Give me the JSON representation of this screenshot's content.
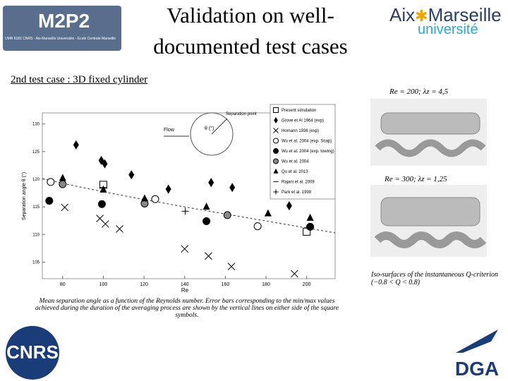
{
  "header": {
    "logo_left": "M2P2",
    "logo_left_sub": "UMR 6181 CNRS - Aix-Marseille Universités - Ecole Centrale Marseille",
    "title_lines": [
      "Validation on well-",
      "documented test cases"
    ],
    "logo_right": [
      "Aix",
      "Marseille",
      "université"
    ]
  },
  "section": "2nd test case : 3D fixed cylinder",
  "chart_data": {
    "type": "scatter",
    "xlabel": "Re",
    "ylabel": "Separation angle θ (°)",
    "inset": {
      "separation": "Separation point",
      "flow": "Flow",
      "angle": "θ (°)"
    },
    "xlim": [
      70,
      214
    ],
    "ylim": [
      102,
      132
    ],
    "xticks": [
      80,
      100,
      120,
      140,
      160,
      180,
      200
    ],
    "yticks": [
      105,
      110,
      115,
      120,
      125,
      130
    ],
    "series": [
      {
        "name": "Present simulation",
        "marker": "square",
        "color": "#000000",
        "x": [
          100,
          200
        ],
        "values": [
          119,
          110.5
        ]
      },
      {
        "name": "Grove et Al 1964 (exp)",
        "marker": "diamond",
        "color": "#000000",
        "x": [
          86.6,
          99,
          100.7,
          113.8,
          132,
          153,
          163.4,
          191.4
        ],
        "values": [
          126.2,
          123.4,
          122.8,
          120.8,
          118.2,
          119.4,
          118.5,
          115.2
        ]
      },
      {
        "name": "Homann 1936 (exp)",
        "marker": "x",
        "color": "#000000",
        "x": [
          81,
          98.3,
          101,
          108,
          140,
          151.7,
          163,
          194
        ],
        "values": [
          114.9,
          112.9,
          111.9,
          111,
          107.4,
          106.1,
          104.2,
          102.9
        ]
      },
      {
        "name": "Wu et al. 2004 (exp. Soap)",
        "marker": "open-circle",
        "color": "#000000",
        "x": [
          74.1,
          125.5,
          175.9
        ],
        "values": [
          119.5,
          116.4,
          111.5
        ]
      },
      {
        "name": "Wu et al. 2004 (exp. towing)",
        "marker": "circle",
        "color": "#000000",
        "x": [
          73.4,
          99.3,
          150.7,
          201.7
        ],
        "values": [
          116.1,
          115.5,
          112.4,
          111.4
        ]
      },
      {
        "name": "Wu et al. 2004",
        "marker": "circle",
        "color": "#888888",
        "x": [
          80,
          120.3,
          161
        ],
        "values": [
          119.1,
          115.6,
          113.5
        ]
      },
      {
        "name": "Qu et al. 2013",
        "marker": "triangle",
        "color": "#000000",
        "x": [
          80,
          100,
          120.3,
          150.7,
          181,
          201.7
        ],
        "values": [
          120.2,
          118.1,
          116.5,
          115,
          113.8,
          113
        ]
      },
      {
        "name": "Rajani et al. 2009",
        "marker": "dash",
        "color": "#000000",
        "x": [
          100
        ],
        "values": [
          118.5
        ]
      },
      {
        "name": "Park et al. 1998",
        "marker": "plus",
        "color": "#000000",
        "x": [
          140.3
        ],
        "values": [
          114.2
        ]
      }
    ]
  },
  "figures": [
    {
      "label": "Re = 200; λz = 4,5"
    },
    {
      "label": "Re = 300; λz = 1,25"
    }
  ],
  "figure_caption": "Iso-surfaces of the instantaneous Q-criterion (−0.8 < Q < 0.8)",
  "chart_caption": "Mean separation angle as a function of the Reynolds number. Error bars corresponding to the min/max values achieved during the duration of the averaging process are shown by the vertical lines on either side of the square symbols.",
  "footer": {
    "logo_left": "CNRS",
    "logo_right": "DGA"
  }
}
